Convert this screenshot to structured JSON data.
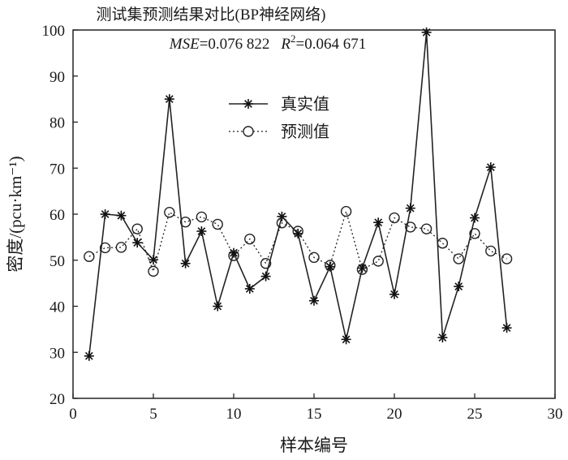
{
  "chart_data": {
    "type": "line",
    "title": "测试集预测结果对比(BP神经网络)",
    "subtitle": {
      "mse_label": "MSE",
      "mse_value": "=0.076 822",
      "r2_label": "R",
      "r2_sup": "2",
      "r2_value": "=0.064 671"
    },
    "xlabel": "样本编号",
    "ylabel": "密度/(pcu·km⁻¹)",
    "xlim": [
      0,
      30
    ],
    "ylim": [
      20,
      100
    ],
    "xticks": [
      0,
      5,
      10,
      15,
      20,
      25,
      30
    ],
    "yticks": [
      20,
      30,
      40,
      50,
      60,
      70,
      80,
      90,
      100
    ],
    "grid": false,
    "legend_position": "upper-left-center",
    "x": [
      1,
      2,
      3,
      4,
      5,
      6,
      7,
      8,
      9,
      10,
      11,
      12,
      13,
      14,
      15,
      16,
      17,
      18,
      19,
      20,
      21,
      22,
      23,
      24,
      25,
      26,
      27
    ],
    "series": [
      {
        "name": "真实值",
        "marker": "star",
        "line": "solid",
        "values": [
          29.2,
          60.0,
          59.7,
          53.8,
          50.1,
          85.0,
          49.3,
          56.3,
          40.0,
          51.6,
          43.8,
          46.5,
          59.5,
          55.8,
          41.2,
          48.6,
          32.8,
          48.3,
          58.2,
          42.6,
          61.3,
          99.5,
          33.2,
          44.3,
          59.2,
          70.2,
          35.3
        ]
      },
      {
        "name": "预测值",
        "marker": "circle",
        "line": "dotted",
        "values": [
          50.8,
          52.7,
          52.8,
          56.8,
          47.6,
          60.4,
          58.3,
          59.4,
          57.8,
          51.0,
          54.6,
          49.3,
          58.1,
          56.3,
          50.6,
          48.9,
          60.6,
          48.0,
          49.8,
          59.2,
          57.2,
          56.8,
          53.7,
          50.3,
          55.8,
          52.0,
          50.3
        ]
      }
    ]
  }
}
